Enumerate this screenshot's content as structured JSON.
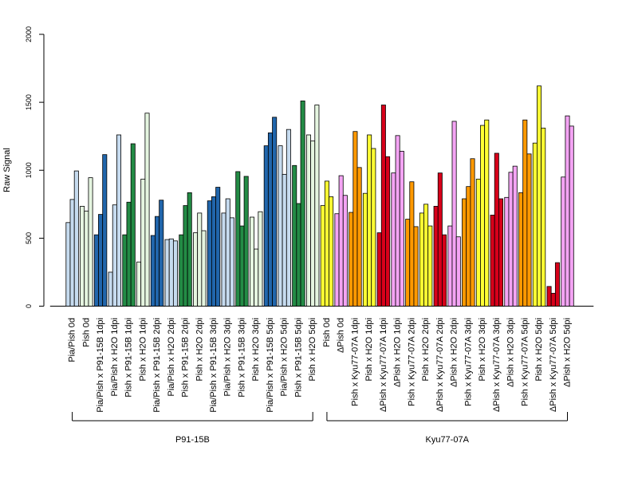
{
  "chart_data": {
    "type": "bar",
    "ylabel": "Raw Signal",
    "ylim": [
      0,
      2000
    ],
    "yticks": [
      0,
      500,
      1000,
      1500,
      2000
    ],
    "grid": false,
    "legend": "none",
    "groups": [
      {
        "label": "P91-15B"
      },
      {
        "label": "Kyu77-07A"
      }
    ],
    "categories": [
      {
        "label": "Pia/Pish 0d",
        "color": "#c6dbef",
        "values": [
          615,
          785,
          995
        ]
      },
      {
        "label": "Pish 0d",
        "color": "#e5f5e0",
        "values": [
          735,
          700,
          945
        ]
      },
      {
        "label": "Pia/Pish x P91-15B 1dpi",
        "color": "#2166ac",
        "values": [
          525,
          675,
          1115
        ]
      },
      {
        "label": "Pia/Pish x H2O 1dpi",
        "color": "#c6dbef",
        "values": [
          250,
          745,
          1260
        ]
      },
      {
        "label": "Pish x P91-15B 1dpi",
        "color": "#238b45",
        "values": [
          525,
          765,
          1195
        ]
      },
      {
        "label": "Pish x H2O 1dpi",
        "color": "#e5f5e0",
        "values": [
          325,
          935,
          1420
        ]
      },
      {
        "label": "Pia/Pish x P91-15B 2dpi",
        "color": "#2166ac",
        "values": [
          520,
          660,
          780
        ]
      },
      {
        "label": "Pia/Pish x H2O 2dpi",
        "color": "#c6dbef",
        "values": [
          490,
          495,
          480
        ]
      },
      {
        "label": "Pish x P91-15B 2dpi",
        "color": "#238b45",
        "values": [
          525,
          740,
          835
        ]
      },
      {
        "label": "Pish x H2O 2dpi",
        "color": "#e5f5e0",
        "values": [
          540,
          685,
          555
        ]
      },
      {
        "label": "Pia/Pish x P91-15B 3dpi",
        "color": "#2166ac",
        "values": [
          775,
          805,
          875
        ]
      },
      {
        "label": "Pia/Pish x H2O 3dpi",
        "color": "#c6dbef",
        "values": [
          685,
          790,
          650
        ]
      },
      {
        "label": "Pish x P91-15B 3dpi",
        "color": "#238b45",
        "values": [
          990,
          590,
          955
        ]
      },
      {
        "label": "Pish x H2O 3dpi",
        "color": "#e5f5e0",
        "values": [
          655,
          420,
          695
        ]
      },
      {
        "label": "Pia/Pish x P91-15B 5dpi",
        "color": "#2166ac",
        "values": [
          1180,
          1275,
          1390
        ]
      },
      {
        "label": "Pia/Pish x H2O 5dpi",
        "color": "#c6dbef",
        "values": [
          1180,
          970,
          1300
        ]
      },
      {
        "label": "Pish x P91-15B 5dpi",
        "color": "#238b45",
        "values": [
          1035,
          755,
          1510
        ]
      },
      {
        "label": "Pish x H2O 5dpi",
        "color": "#e5f5e0",
        "values": [
          1260,
          1215,
          1480
        ]
      },
      {
        "label": "Pish 0d",
        "color": "#ffff33",
        "values": [
          740,
          920,
          805
        ]
      },
      {
        "label": "ΔPish 0d",
        "color": "#f4a4f4",
        "values": [
          680,
          960,
          815
        ]
      },
      {
        "label": "Pish x Kyu77-07A 1dpi",
        "color": "#ff9900",
        "values": [
          690,
          1285,
          1020
        ]
      },
      {
        "label": "Pish x H2O 1dpi",
        "color": "#ffff33",
        "values": [
          830,
          1260,
          1160
        ]
      },
      {
        "label": "ΔPish x Kyu77-07A 1dpi",
        "color": "#d7001a",
        "values": [
          540,
          1480,
          1100
        ]
      },
      {
        "label": "ΔPish x H2O 1dpi",
        "color": "#f4a4f4",
        "values": [
          980,
          1255,
          1140
        ]
      },
      {
        "label": "Pish x Kyu77-07A 2dpi",
        "color": "#ff9900",
        "values": [
          640,
          915,
          585
        ]
      },
      {
        "label": "Pish x H2O 2dpi",
        "color": "#ffff33",
        "values": [
          685,
          750,
          590
        ]
      },
      {
        "label": "ΔPish x Kyu77-07A 2dpi",
        "color": "#d7001a",
        "values": [
          735,
          980,
          525
        ]
      },
      {
        "label": "ΔPish x H2O 2dpi",
        "color": "#f4a4f4",
        "values": [
          590,
          1360,
          510
        ]
      },
      {
        "label": "Pish x Kyu77-07A 3dpi",
        "color": "#ff9900",
        "values": [
          790,
          880,
          1085
        ]
      },
      {
        "label": "Pish x H2O 3dpi",
        "color": "#ffff33",
        "values": [
          935,
          1330,
          1370
        ]
      },
      {
        "label": "ΔPish x Kyu77-07A 3dpi",
        "color": "#d7001a",
        "values": [
          670,
          1125,
          790
        ]
      },
      {
        "label": "ΔPish x H2O 3dpi",
        "color": "#f4a4f4",
        "values": [
          800,
          985,
          1030
        ]
      },
      {
        "label": "Pish x Kyu77-07A 5dpi",
        "color": "#ff9900",
        "values": [
          835,
          1370,
          1120
        ]
      },
      {
        "label": "Pish x H2O 5dpi",
        "color": "#ffff33",
        "values": [
          1200,
          1620,
          1310
        ]
      },
      {
        "label": "ΔPish x Kyu77-07A 5dpi",
        "color": "#d7001a",
        "values": [
          145,
          95,
          320
        ]
      },
      {
        "label": "ΔPish x H2O 5dpi",
        "color": "#f4a4f4",
        "values": [
          950,
          1400,
          1325
        ]
      }
    ]
  }
}
